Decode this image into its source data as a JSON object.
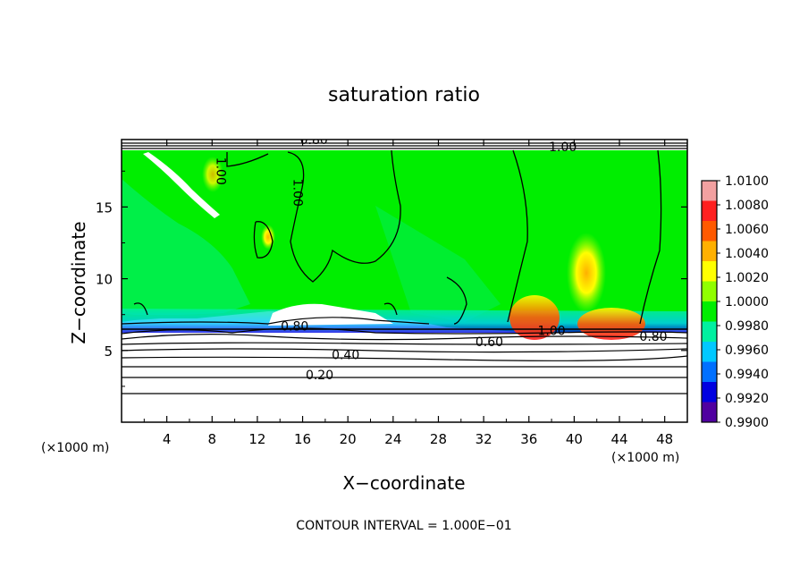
{
  "chart_data": {
    "type": "heatmap",
    "title": "saturation ratio",
    "xlabel": "X−coordinate",
    "ylabel": "Z−coordinate",
    "x_unit_left": "(×1000 m)",
    "x_unit_right": "(×1000 m)",
    "footer": "CONTOUR INTERVAL = 1.000E−01",
    "xlim": [
      0,
      50
    ],
    "ylim": [
      0,
      19.7
    ],
    "x_ticks": [
      4,
      8,
      12,
      16,
      20,
      24,
      28,
      32,
      36,
      40,
      44,
      48
    ],
    "y_ticks": [
      5,
      10,
      15
    ],
    "colorbar": {
      "min": 0.99,
      "max": 1.01,
      "labels": [
        "1.0100",
        "1.0080",
        "1.0060",
        "1.0040",
        "1.0020",
        "1.0000",
        "0.9980",
        "0.9960",
        "0.9940",
        "0.9920",
        "0.9900"
      ],
      "colors": [
        "#f2a0a0",
        "#ff2020",
        "#ff5a00",
        "#ffb000",
        "#ffff00",
        "#90ff00",
        "#00ee00",
        "#00f0a0",
        "#00c8ff",
        "#0070ff",
        "#0000e0",
        "#5000a0"
      ]
    },
    "contour_labels": [
      {
        "text": "0.80",
        "x": 17.0,
        "z": 19.7
      },
      {
        "text": "1.00",
        "x": 8.8,
        "z": 17.5
      },
      {
        "text": "1.00",
        "x": 15.6,
        "z": 16.0
      },
      {
        "text": "1.00",
        "x": 39.0,
        "z": 19.2
      },
      {
        "text": "0.80",
        "x": 15.3,
        "z": 6.7
      },
      {
        "text": "1.00",
        "x": 38.0,
        "z": 6.4
      },
      {
        "text": "0.60",
        "x": 32.5,
        "z": 5.6
      },
      {
        "text": "0.80",
        "x": 47.0,
        "z": 6.0
      },
      {
        "text": "0.40",
        "x": 19.8,
        "z": 4.7
      },
      {
        "text": "0.20",
        "x": 17.5,
        "z": 3.3
      }
    ],
    "grid": false
  }
}
